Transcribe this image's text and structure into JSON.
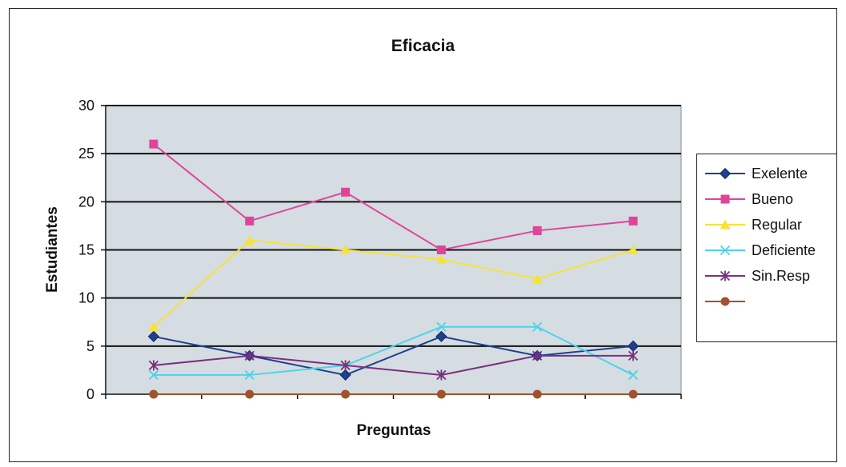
{
  "chart_data": {
    "type": "line",
    "title": "Eficacia",
    "xlabel": "Preguntas",
    "ylabel": "Estudiantes",
    "ylim": [
      0,
      30
    ],
    "yticks": [
      "0",
      "5",
      "10",
      "15",
      "20",
      "25",
      "30"
    ],
    "x": [
      1,
      2,
      3,
      4,
      5,
      6
    ],
    "grid": true,
    "legend_position": "right",
    "series": [
      {
        "name": "Exelente",
        "color": "#1f3f8f",
        "marker": "diamond",
        "values": [
          6,
          4,
          2,
          6,
          4,
          5
        ]
      },
      {
        "name": "Bueno",
        "color": "#e0449a",
        "marker": "square",
        "values": [
          26,
          18,
          21,
          15,
          17,
          18
        ]
      },
      {
        "name": "Regular",
        "color": "#f5e23a",
        "marker": "triangle",
        "values": [
          7,
          16,
          15,
          14,
          12,
          15
        ]
      },
      {
        "name": "Deficiente",
        "color": "#4fd2e8",
        "marker": "x",
        "values": [
          2,
          2,
          3,
          7,
          7,
          2
        ]
      },
      {
        "name": "Sin.Resp",
        "color": "#7a2f7f",
        "marker": "star",
        "values": [
          3,
          4,
          3,
          2,
          4,
          4
        ]
      },
      {
        "name": "",
        "color": "#a0522d",
        "marker": "circle",
        "values": [
          0,
          0,
          0,
          0,
          0,
          0
        ]
      }
    ]
  }
}
